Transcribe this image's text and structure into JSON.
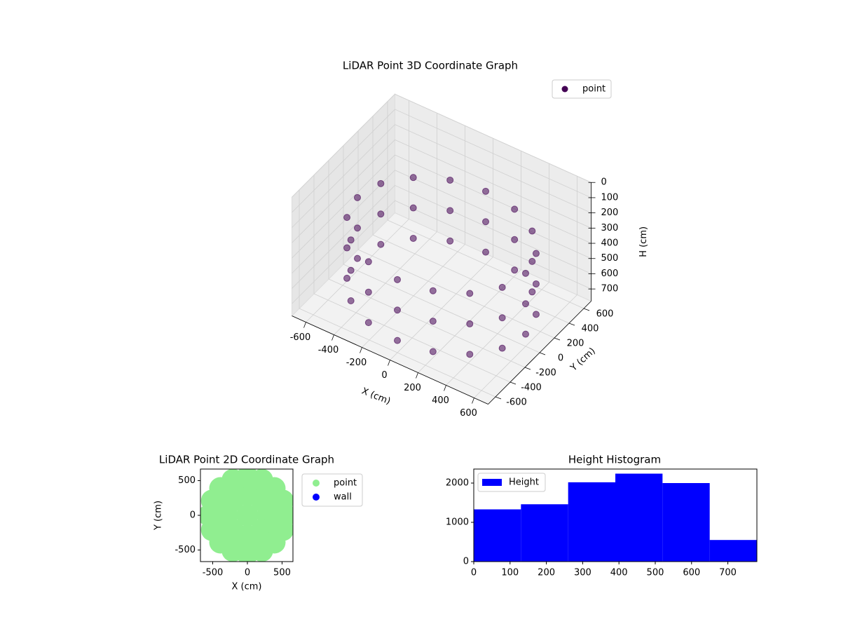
{
  "chart_data": [
    {
      "type": "scatter3d",
      "title": "LiDAR Point 3D Coordinate Graph",
      "xlabel": "X (cm)",
      "ylabel": "Y (cm)",
      "zlabel": "H (cm)",
      "xlim": [
        -700,
        700
      ],
      "ylim": [
        -700,
        700
      ],
      "zlim": [
        780,
        0
      ],
      "xticks": [
        -600,
        -400,
        -200,
        0,
        200,
        400,
        600
      ],
      "yticks": [
        -600,
        -400,
        -200,
        0,
        200,
        400,
        600
      ],
      "zticks": [
        0,
        100,
        200,
        300,
        400,
        500,
        600,
        700
      ],
      "grid": true,
      "legend": "upper right",
      "series": [
        {
          "name": "point",
          "color": "#440154",
          "x": [
            600,
            554,
            424,
            230,
            0,
            -230,
            -424,
            -554,
            -600,
            -554,
            -424,
            -230,
            0,
            230,
            424,
            554,
            600,
            554,
            424,
            230,
            0,
            -230,
            -424,
            -554,
            -600,
            -554,
            -424,
            -230,
            0,
            230,
            424,
            554,
            600,
            554,
            424,
            230,
            0,
            -230,
            -424,
            -554,
            -600,
            -554,
            -424,
            -230,
            0,
            230,
            424,
            554
          ],
          "y": [
            0,
            230,
            424,
            554,
            600,
            554,
            424,
            230,
            0,
            -230,
            -424,
            -554,
            -600,
            -554,
            -424,
            -230,
            0,
            230,
            424,
            554,
            600,
            554,
            424,
            230,
            0,
            -230,
            -424,
            -554,
            -600,
            -554,
            -424,
            -230,
            0,
            230,
            424,
            554,
            600,
            554,
            424,
            230,
            0,
            -230,
            -424,
            -554,
            -600,
            -554,
            -424,
            -230
          ],
          "z": [
            300,
            300,
            300,
            300,
            300,
            300,
            300,
            300,
            300,
            300,
            300,
            300,
            300,
            300,
            300,
            300,
            500,
            500,
            500,
            500,
            500,
            500,
            500,
            500,
            500,
            500,
            500,
            500,
            500,
            500,
            500,
            500,
            700,
            700,
            700,
            700,
            700,
            700,
            700,
            700,
            700,
            700,
            700,
            700,
            700,
            700,
            700,
            700
          ]
        }
      ]
    },
    {
      "type": "scatter",
      "title": "LiDAR Point 2D Coordinate Graph",
      "xlabel": "X (cm)",
      "ylabel": "Y (cm)",
      "xlim": [
        -677,
        657
      ],
      "ylim": [
        -667,
        667
      ],
      "xticks": [
        -500,
        0,
        500
      ],
      "yticks": [
        -500,
        0,
        500
      ],
      "legend": "outside right",
      "series": [
        {
          "name": "point",
          "color": "#90ee90",
          "x": [
            0,
            300,
            212,
            0,
            -212,
            -300,
            -212,
            0,
            212,
            550,
            508,
            389,
            210,
            0,
            -210,
            -389,
            -508,
            -550,
            -508,
            -389,
            -210,
            0,
            210,
            389,
            508
          ],
          "y": [
            0,
            0,
            212,
            300,
            212,
            0,
            -212,
            -300,
            -212,
            0,
            210,
            389,
            508,
            550,
            508,
            389,
            210,
            0,
            -210,
            -389,
            -508,
            -550,
            -508,
            -389,
            -210
          ]
        },
        {
          "name": "wall",
          "color": "#0000ff",
          "x": [],
          "y": []
        }
      ]
    },
    {
      "type": "histogram",
      "title": "Height Histogram",
      "series_name": "Height",
      "color": "#0000ff",
      "bins": [
        0,
        130,
        260,
        390,
        520,
        650,
        780
      ],
      "counts": [
        1330,
        1460,
        2020,
        2240,
        2000,
        550
      ],
      "xlim": [
        0,
        780
      ],
      "ylim": [
        0,
        2357
      ],
      "xticks": [
        0,
        100,
        200,
        300,
        400,
        500,
        600,
        700
      ],
      "yticks": [
        0,
        1000,
        2000
      ],
      "legend": "upper left"
    }
  ]
}
